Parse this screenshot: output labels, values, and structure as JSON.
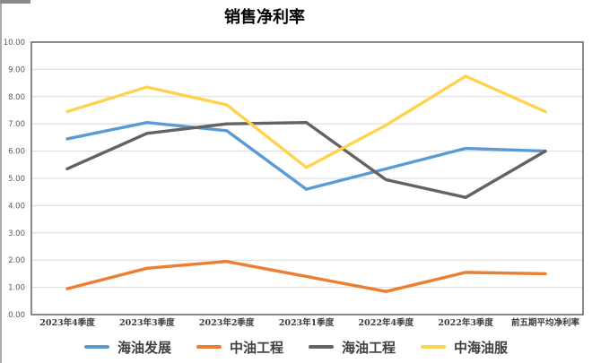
{
  "title": "销售净利率",
  "chart_data": {
    "type": "line",
    "categories": [
      "2023年4季度",
      "2023年3季度",
      "2023年2季度",
      "2023年1季度",
      "2022年4季度",
      "2022年3季度",
      "前五期平均净利率"
    ],
    "series": [
      {
        "name": "海油发展",
        "color": "#5B9BD5",
        "values": [
          6.45,
          7.05,
          6.75,
          4.6,
          5.35,
          6.1,
          6.0
        ]
      },
      {
        "name": "中油工程",
        "color": "#ED7D31",
        "values": [
          0.95,
          1.7,
          1.95,
          1.4,
          0.85,
          1.55,
          1.5
        ]
      },
      {
        "name": "海油工程",
        "color": "#636363",
        "values": [
          5.35,
          6.65,
          7.0,
          7.05,
          4.95,
          4.3,
          6.0
        ]
      },
      {
        "name": "中海油服",
        "color": "#FFD34D",
        "values": [
          7.45,
          8.35,
          7.7,
          5.4,
          6.95,
          8.75,
          7.45
        ]
      }
    ],
    "title": "销售净利率",
    "xlabel": "",
    "ylabel": "",
    "ylim": [
      0,
      10
    ],
    "ytick_step": 1,
    "ytick_labels": [
      "0.00",
      "1.00",
      "2.00",
      "3.00",
      "4.00",
      "5.00",
      "6.00",
      "7.00",
      "8.00",
      "9.00",
      "10.00"
    ],
    "grid": true,
    "legend_position": "bottom",
    "colors": {
      "grid": "#D9D9D9",
      "plot_border": "#595959",
      "tick_text": "#595959",
      "category_text": "#3b3b3b",
      "background": "#ffffff"
    }
  }
}
